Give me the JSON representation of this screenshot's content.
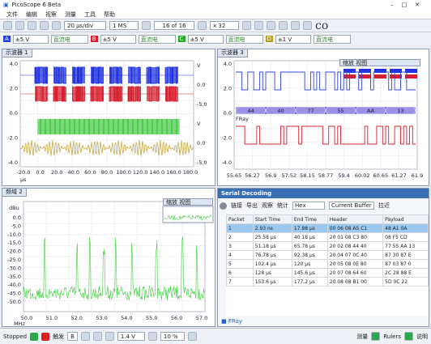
{
  "window": {
    "title": "PicoScope 6 Beta"
  },
  "menu": [
    "文件",
    "编辑",
    "视察",
    "测量",
    "工具",
    "帮助"
  ],
  "toolbar": {
    "timebase": "20 µs/div",
    "samples": "1 MS",
    "buffer": "16 of 16",
    "zoom": "x 32"
  },
  "channels": [
    {
      "label": "A",
      "range": "±5 V",
      "coupling": "直流电"
    },
    {
      "label": "B",
      "range": "±5 V",
      "coupling": "直流电"
    },
    {
      "label": "C",
      "range": "±5 V",
      "coupling": "直流电"
    },
    {
      "label": "D",
      "range": "±1 V",
      "coupling": "直流电"
    }
  ],
  "scope1": {
    "title": "示波器 1",
    "yticks": [
      "4.0",
      "2.0",
      "0.0",
      "-2.0",
      "-4.0"
    ],
    "right_ticks": [
      "V",
      "0.0",
      "-5.0",
      "V",
      "0.0",
      "-5.0"
    ],
    "xticks": [
      "-20.0",
      "0.0",
      "20.0",
      "40.0",
      "60.0",
      "80.0",
      "100.0",
      "120.0",
      "140.0",
      "160.0",
      "180.0"
    ],
    "xunit": "µs"
  },
  "scope3": {
    "title": "示波器 3",
    "zoom_title": "缩放 视图",
    "yticks": [
      "4.0",
      "2.0",
      "0.0",
      "-2.0",
      "-4.0"
    ],
    "xticks": [
      "55.65",
      "56.27",
      "56.9",
      "57.52",
      "58.15",
      "58.77",
      "59.4",
      "60.02",
      "60.65",
      "61.27",
      "61.9"
    ],
    "decoder": [
      "44",
      "40",
      "77",
      "55",
      "AA",
      "13"
    ],
    "decoder_name": "FRay"
  },
  "spectrum": {
    "title": "频域 2",
    "zoom_title": "缩放 视图",
    "yunit": "dBu",
    "yticks": [
      "0.0",
      "-5.0",
      "-10.0",
      "-15.0",
      "-20.0",
      "-25.0",
      "-30.0",
      "-35.0",
      "-40.0",
      "-45.0",
      "-50.0"
    ],
    "xticks": [
      "50.0",
      "51.0",
      "52.0",
      "53.0",
      "54.0",
      "55.0",
      "56.0",
      "57.0"
    ],
    "xunit": "MHz"
  },
  "serial": {
    "title": "Serial Decoding",
    "toolbar": [
      "链接",
      "导出",
      "观察",
      "统计"
    ],
    "format": "Hex",
    "buffer": "Current Buffer",
    "zoom": "拉近",
    "columns": [
      "Packet",
      "Start Time",
      "End Time",
      "Header",
      "Payload"
    ],
    "rows": [
      [
        "1",
        "2.93 ns",
        "17.88 µs",
        "00 06 08 A5 C1",
        "48 A1 0A"
      ],
      [
        "2",
        "25.58 µs",
        "40.18 µs",
        "20 01 08 C3 80",
        "08 F5 CD"
      ],
      [
        "3",
        "51.18 µs",
        "65.78 µs",
        "20 02 08 44 40",
        "77 55 AA 13"
      ],
      [
        "4",
        "76.78 µs",
        "92.38 µs",
        "20 04 07 0C 40",
        "87 30 87 E"
      ],
      [
        "5",
        "102.4 µs",
        "120 µs",
        "20 05 08 0E 80",
        "87 03 87 0"
      ],
      [
        "6",
        "128 µs",
        "145.6 µs",
        "20 07 08 64 60",
        "2C 28 88 E"
      ],
      [
        "7",
        "153.6 µs",
        "177.2 µs",
        "20 08 08 B1 00",
        "5D 0C 22"
      ]
    ],
    "footer": "FRay"
  },
  "status": {
    "state": "Stopped",
    "trigger": "触发",
    "mode": "B",
    "level": "1.4 V",
    "percent": "10 %",
    "measure": "测量",
    "rulers": "Rulers",
    "notes": "说明"
  }
}
